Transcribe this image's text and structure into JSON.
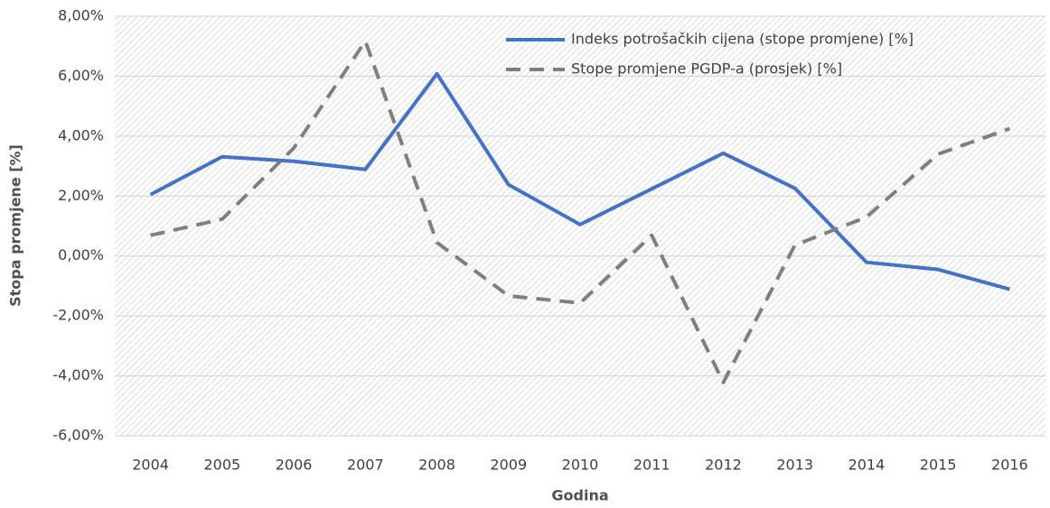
{
  "chart_data": {
    "type": "line",
    "y_label": "Stopa promjene [%]",
    "x_label": "Godina",
    "categories": [
      "2004",
      "2005",
      "2006",
      "2007",
      "2008",
      "2009",
      "2010",
      "2011",
      "2012",
      "2013",
      "2014",
      "2015",
      "2016"
    ],
    "series": [
      {
        "name": "Indeks potrošačkih cijena (stope promjene) [%]",
        "color": "#4472c4",
        "dash": false,
        "values": [
          2.05,
          3.31,
          3.16,
          2.89,
          6.08,
          2.38,
          1.05,
          2.24,
          3.43,
          2.26,
          -0.21,
          -0.45,
          -1.11
        ]
      },
      {
        "name": "Stope promjene PGDP-a (prosjek) [%]",
        "color": "#7f7f7f",
        "dash": true,
        "values": [
          0.69,
          1.23,
          3.6,
          7.17,
          0.45,
          -1.33,
          -1.57,
          0.69,
          -4.22,
          0.36,
          1.3,
          3.4,
          4.25
        ]
      }
    ],
    "ylim": [
      -6,
      8
    ],
    "yticks": [
      {
        "value": -6,
        "label": "-6,00%"
      },
      {
        "value": -4,
        "label": "-4,00%"
      },
      {
        "value": -2,
        "label": "-2,00%"
      },
      {
        "value": 0,
        "label": "0,00%"
      },
      {
        "value": 2,
        "label": "2,00%"
      },
      {
        "value": 4,
        "label": "4,00%"
      },
      {
        "value": 6,
        "label": "6,00%"
      },
      {
        "value": 8,
        "label": "8,00%"
      }
    ],
    "grid": true,
    "legend": "top-right"
  }
}
